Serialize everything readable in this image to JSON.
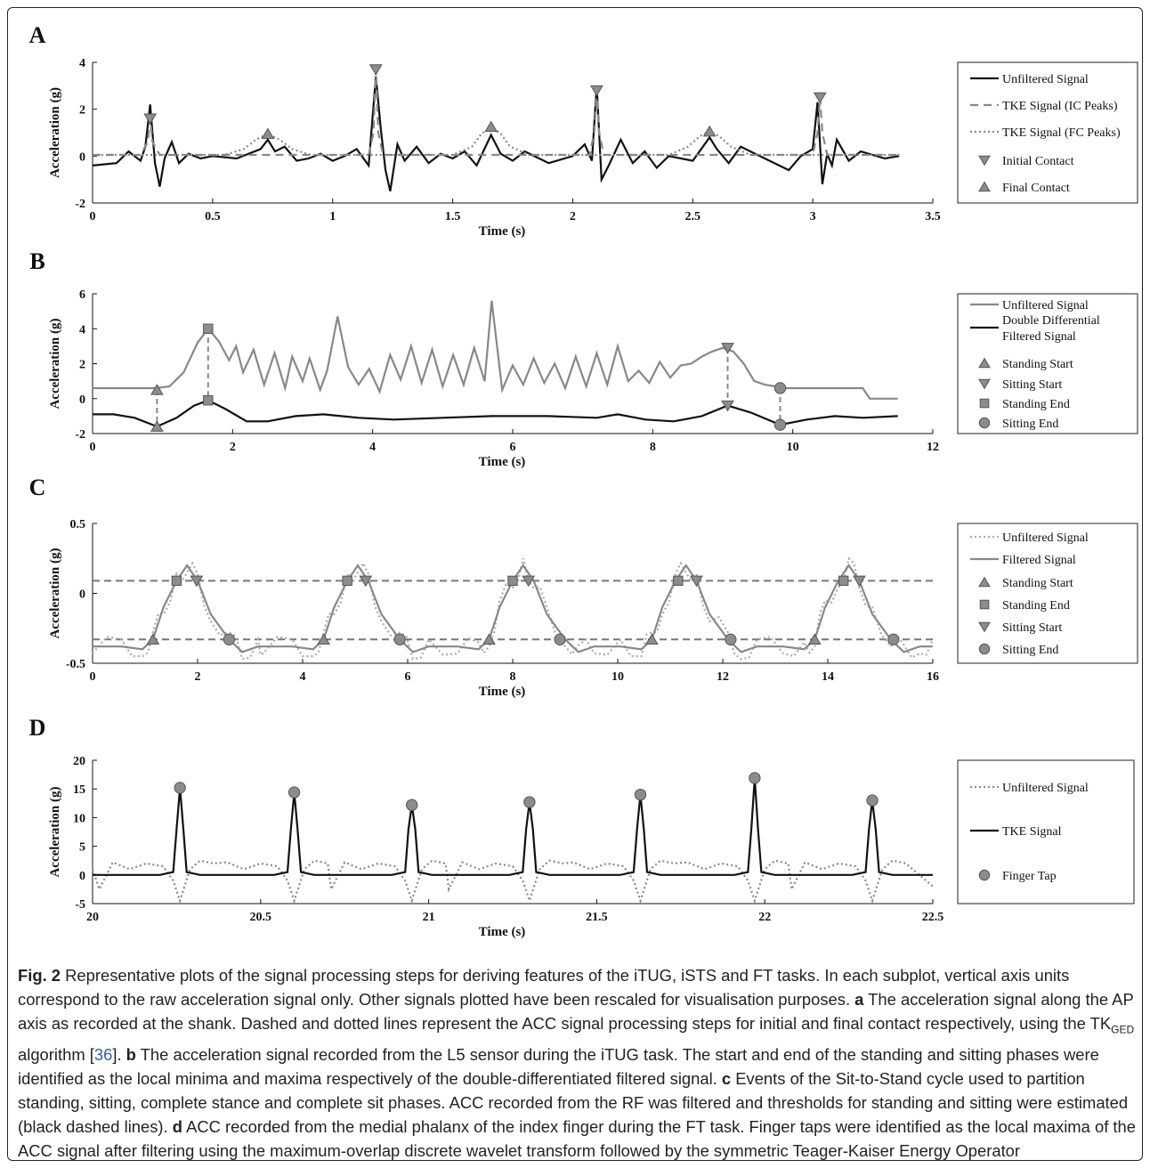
{
  "colors": {
    "black": "#111111",
    "gray": "#888888",
    "marker": "#8c8c8c",
    "light_gray": "#aaaaaa"
  },
  "panels": [
    {
      "letter": "A"
    },
    {
      "letter": "B"
    },
    {
      "letter": "C"
    },
    {
      "letter": "D"
    }
  ],
  "chart_data": [
    {
      "panel": "A",
      "type": "line",
      "xlabel": "Time (s)",
      "ylabel": "Acceleration  (g)",
      "xlim": [
        0,
        3.5
      ],
      "ylim": [
        -2,
        4
      ],
      "xticks": [
        "0",
        "0.5",
        "1",
        "1.5",
        "2",
        "2.5",
        "3",
        "3.5"
      ],
      "yticks": [
        "-2",
        "0",
        "2",
        "4"
      ],
      "legend_position": "right",
      "legend": [
        {
          "label": "Unfiltered Signal",
          "style": "solid-black"
        },
        {
          "label": "TKE Signal (IC Peaks)",
          "style": "dashed-gray"
        },
        {
          "label": "TKE Signal (FC Peaks)",
          "style": "dotted-gray"
        },
        {
          "label": "Initial Contact",
          "style": "triangle-down"
        },
        {
          "label": "Final Contact",
          "style": "triangle-up"
        }
      ],
      "series": [
        {
          "name": "Unfiltered Signal",
          "style": "solid-black",
          "x": [
            0,
            0.1,
            0.15,
            0.2,
            0.22,
            0.24,
            0.26,
            0.28,
            0.3,
            0.33,
            0.36,
            0.4,
            0.45,
            0.5,
            0.6,
            0.7,
            0.73,
            0.76,
            0.8,
            0.85,
            0.9,
            0.95,
            1.0,
            1.05,
            1.1,
            1.15,
            1.18,
            1.2,
            1.22,
            1.24,
            1.27,
            1.3,
            1.35,
            1.4,
            1.45,
            1.5,
            1.55,
            1.6,
            1.66,
            1.7,
            1.75,
            1.8,
            1.9,
            2.0,
            2.05,
            2.08,
            2.1,
            2.12,
            2.15,
            2.2,
            2.25,
            2.3,
            2.35,
            2.4,
            2.5,
            2.57,
            2.6,
            2.65,
            2.7,
            2.8,
            2.9,
            2.95,
            3.0,
            3.02,
            3.04,
            3.06,
            3.08,
            3.1,
            3.15,
            3.2,
            3.3,
            3.36
          ],
          "y": [
            -0.4,
            -0.3,
            0.2,
            -0.2,
            0.4,
            2.2,
            -0.3,
            -1.3,
            -0.1,
            0.6,
            -0.3,
            0.1,
            -0.1,
            0.0,
            -0.1,
            0.3,
            0.7,
            0.2,
            0.4,
            -0.2,
            -0.1,
            0.1,
            -0.2,
            0.0,
            0.3,
            -0.4,
            3.4,
            1.2,
            -0.6,
            -1.5,
            0.5,
            -0.2,
            0.4,
            -0.3,
            0.1,
            -0.1,
            0.2,
            -0.4,
            0.9,
            0.1,
            -0.2,
            0.2,
            -0.3,
            0.0,
            0.5,
            -0.2,
            3.0,
            -1.0,
            -0.4,
            0.7,
            -0.3,
            0.2,
            -0.5,
            0.0,
            -0.2,
            0.8,
            0.3,
            -0.3,
            0.4,
            -0.1,
            -0.6,
            0.0,
            0.3,
            2.3,
            -1.2,
            0.1,
            -0.4,
            0.7,
            -0.2,
            0.2,
            -0.1,
            0.0
          ]
        },
        {
          "name": "TKE Signal (IC Peaks)",
          "style": "dashed-gray",
          "x": [
            0,
            0.2,
            0.23,
            0.24,
            0.25,
            0.28,
            1.15,
            1.17,
            1.18,
            1.19,
            1.21,
            2.07,
            2.09,
            2.1,
            2.11,
            2.13,
            3.0,
            3.02,
            3.03,
            3.04,
            3.06,
            3.36
          ],
          "y": [
            0.05,
            0.05,
            0.6,
            1.6,
            0.6,
            0.05,
            0.05,
            1.0,
            3.7,
            1.0,
            0.05,
            0.05,
            1.0,
            2.8,
            1.0,
            0.05,
            0.05,
            1.0,
            2.5,
            1.0,
            0.05,
            0.05
          ]
        },
        {
          "name": "TKE Signal (FC Peaks)",
          "style": "dotted-gray",
          "x": [
            0,
            0.55,
            0.63,
            0.68,
            0.73,
            0.78,
            0.83,
            0.91,
            1.5,
            1.58,
            1.62,
            1.66,
            1.7,
            1.74,
            1.82,
            2.4,
            2.48,
            2.53,
            2.57,
            2.61,
            2.66,
            2.74,
            3.36
          ],
          "y": [
            0.05,
            0.05,
            0.3,
            0.7,
            0.95,
            0.7,
            0.3,
            0.05,
            0.05,
            0.4,
            0.95,
            1.25,
            0.95,
            0.4,
            0.05,
            0.05,
            0.4,
            0.85,
            1.05,
            0.85,
            0.4,
            0.05,
            0.05
          ]
        }
      ],
      "markers": [
        {
          "name": "Initial Contact",
          "shape": "triangle-down",
          "points": [
            [
              0.24,
              1.6
            ],
            [
              1.18,
              3.7
            ],
            [
              2.1,
              2.8
            ],
            [
              3.03,
              2.5
            ]
          ]
        },
        {
          "name": "Final Contact",
          "shape": "triangle-up",
          "points": [
            [
              0.73,
              0.95
            ],
            [
              1.66,
              1.25
            ],
            [
              2.57,
              1.05
            ]
          ]
        }
      ]
    },
    {
      "panel": "B",
      "type": "line",
      "xlabel": "Time (s)",
      "ylabel": "Acceleration  (g)",
      "xlim": [
        0,
        12
      ],
      "ylim": [
        -2,
        6
      ],
      "xticks": [
        "0",
        "2",
        "4",
        "6",
        "8",
        "10",
        "12"
      ],
      "yticks": [
        "-2",
        "0",
        "2",
        "4",
        "6"
      ],
      "legend_position": "right",
      "legend": [
        {
          "label": "Unfiltered Signal",
          "style": "solid-gray"
        },
        {
          "label": "Double Differential",
          "label2": "Filtered Signal",
          "style": "solid-black"
        },
        {
          "label": "Standing Start",
          "style": "triangle-up"
        },
        {
          "label": "Sitting Start",
          "style": "triangle-down"
        },
        {
          "label": "Standing End",
          "style": "square"
        },
        {
          "label": "Sitting End",
          "style": "circle"
        }
      ],
      "series": [
        {
          "name": "Unfiltered Signal",
          "style": "solid-gray",
          "x": [
            0,
            0.5,
            0.9,
            1.1,
            1.3,
            1.5,
            1.65,
            1.8,
            1.95,
            2.05,
            2.15,
            2.3,
            2.45,
            2.6,
            2.75,
            2.85,
            3.0,
            3.1,
            3.25,
            3.35,
            3.5,
            3.65,
            3.8,
            3.95,
            4.1,
            4.25,
            4.4,
            4.55,
            4.7,
            4.85,
            5.0,
            5.15,
            5.3,
            5.45,
            5.6,
            5.7,
            5.85,
            6.0,
            6.15,
            6.3,
            6.45,
            6.6,
            6.75,
            6.9,
            7.05,
            7.2,
            7.35,
            7.5,
            7.65,
            7.8,
            7.95,
            8.1,
            8.25,
            8.4,
            8.55,
            8.7,
            8.85,
            9.0,
            9.15,
            9.3,
            9.45,
            9.6,
            9.75,
            9.9,
            10.2,
            10.6,
            11.0,
            11.1,
            11.2,
            11.5
          ],
          "y": [
            0.6,
            0.6,
            0.6,
            0.7,
            1.5,
            3.2,
            4.0,
            3.3,
            2.2,
            3.0,
            1.5,
            2.8,
            0.8,
            2.6,
            0.6,
            2.4,
            1.0,
            2.3,
            0.5,
            1.6,
            4.7,
            1.8,
            0.8,
            1.7,
            0.4,
            2.5,
            1.1,
            3.0,
            0.9,
            2.8,
            0.7,
            2.5,
            0.8,
            2.9,
            1.0,
            5.6,
            0.5,
            1.9,
            0.8,
            2.3,
            0.9,
            2.0,
            0.6,
            2.4,
            0.7,
            2.6,
            0.8,
            3.0,
            1.0,
            1.6,
            0.9,
            2.1,
            1.2,
            1.9,
            2.0,
            2.4,
            2.7,
            2.9,
            2.7,
            2.0,
            1.0,
            0.8,
            0.7,
            0.6,
            0.6,
            0.6,
            0.6,
            0.0,
            0.0,
            0.0
          ]
        },
        {
          "name": "Double Differential Filtered Signal",
          "style": "solid-black",
          "x": [
            0,
            0.3,
            0.6,
            0.92,
            1.2,
            1.45,
            1.65,
            1.9,
            2.2,
            2.5,
            2.9,
            3.3,
            3.8,
            4.3,
            5.0,
            5.7,
            6.5,
            7.2,
            7.5,
            7.9,
            8.3,
            8.7,
            9.07,
            9.4,
            9.82,
            10.2,
            10.6,
            11.0,
            11.5
          ],
          "y": [
            -0.9,
            -0.9,
            -1.1,
            -1.6,
            -1.1,
            -0.4,
            -0.1,
            -0.6,
            -1.3,
            -1.3,
            -1.0,
            -0.9,
            -1.1,
            -1.2,
            -1.1,
            -1.0,
            -1.0,
            -1.1,
            -0.9,
            -1.2,
            -1.3,
            -1.0,
            -0.4,
            -0.8,
            -1.5,
            -1.2,
            -1.0,
            -1.1,
            -1.0
          ]
        }
      ],
      "markers": [
        {
          "name": "Standing Start",
          "shape": "triangle-up",
          "points": [
            [
              0.92,
              0.5
            ],
            [
              0.92,
              -1.6
            ]
          ]
        },
        {
          "name": "Sitting Start",
          "shape": "triangle-down",
          "points": [
            [
              9.07,
              2.9
            ],
            [
              9.07,
              -0.4
            ]
          ]
        },
        {
          "name": "Standing End",
          "shape": "square",
          "points": [
            [
              1.65,
              4.0
            ],
            [
              1.65,
              -0.1
            ]
          ]
        },
        {
          "name": "Sitting End",
          "shape": "circle",
          "points": [
            [
              9.82,
              0.6
            ],
            [
              9.82,
              -1.5
            ]
          ]
        }
      ],
      "connectors": [
        [
          0.92,
          0.5,
          0.92,
          -1.6
        ],
        [
          1.65,
          4.0,
          1.65,
          -0.1
        ],
        [
          9.07,
          2.9,
          9.07,
          -0.4
        ],
        [
          9.82,
          0.6,
          9.82,
          -1.5
        ]
      ]
    },
    {
      "panel": "C",
      "type": "line",
      "xlabel": "Time (s)",
      "ylabel": "Acceleration  (g)",
      "xlim": [
        0,
        16
      ],
      "ylim": [
        -0.5,
        0.5
      ],
      "xticks": [
        "0",
        "2",
        "4",
        "6",
        "8",
        "10",
        "12",
        "14",
        "16"
      ],
      "yticks": [
        "-0.5",
        "0",
        "0.5"
      ],
      "legend_position": "right",
      "thresholds": [
        0.09,
        -0.33
      ],
      "legend": [
        {
          "label": "Unfiltered Signal",
          "style": "dotted-light"
        },
        {
          "label": "Filtered Signal",
          "style": "solid-gray"
        },
        {
          "label": "Standing Start",
          "style": "triangle-up"
        },
        {
          "label": "Standing End",
          "style": "square"
        },
        {
          "label": "Sitting Start",
          "style": "triangle-down"
        },
        {
          "label": "Sitting End",
          "style": "circle"
        }
      ],
      "cycle_starts": [
        1.15,
        4.4,
        7.55,
        10.65,
        13.75
      ],
      "markers": [
        {
          "name": "Standing Start",
          "shape": "triangle-up",
          "points": [
            [
              1.15,
              -0.33
            ],
            [
              4.4,
              -0.33
            ],
            [
              7.55,
              -0.33
            ],
            [
              10.65,
              -0.33
            ],
            [
              13.75,
              -0.33
            ]
          ]
        },
        {
          "name": "Standing End",
          "shape": "square",
          "points": [
            [
              1.6,
              0.09
            ],
            [
              4.85,
              0.09
            ],
            [
              8.0,
              0.09
            ],
            [
              11.15,
              0.09
            ],
            [
              14.3,
              0.09
            ]
          ]
        },
        {
          "name": "Sitting Start",
          "shape": "triangle-down",
          "points": [
            [
              1.98,
              0.09
            ],
            [
              5.2,
              0.09
            ],
            [
              8.3,
              0.09
            ],
            [
              11.5,
              0.09
            ],
            [
              14.6,
              0.09
            ]
          ]
        },
        {
          "name": "Sitting End",
          "shape": "circle",
          "points": [
            [
              2.6,
              -0.33
            ],
            [
              5.85,
              -0.33
            ],
            [
              8.9,
              -0.33
            ],
            [
              12.15,
              -0.33
            ],
            [
              15.25,
              -0.33
            ]
          ]
        }
      ]
    },
    {
      "panel": "D",
      "type": "line",
      "xlabel": "Time (s)",
      "ylabel": "Acceleration  (g)",
      "xlim": [
        20,
        22.5
      ],
      "ylim": [
        -5,
        20
      ],
      "xticks": [
        "20",
        "20.5",
        "21",
        "21.5",
        "22",
        "22.5"
      ],
      "yticks": [
        "-5",
        "0",
        "5",
        "10",
        "15",
        "20"
      ],
      "legend_position": "right",
      "legend": [
        {
          "label": "Unfiltered Signal",
          "style": "dotted-gray"
        },
        {
          "label": "TKE Signal",
          "style": "solid-black"
        },
        {
          "label": "Finger Tap",
          "style": "circle"
        }
      ],
      "taps": [
        [
          20.26,
          15.2
        ],
        [
          20.6,
          14.4
        ],
        [
          20.95,
          12.2
        ],
        [
          21.3,
          12.7
        ],
        [
          21.63,
          14.0
        ],
        [
          21.97,
          16.9
        ],
        [
          22.32,
          13.0
        ]
      ]
    }
  ],
  "caption": {
    "fig_label": "Fig. 2",
    "text1": " Representative plots of the signal processing steps for deriving features of the iTUG, iSTS and FT tasks. In each subplot, vertical axis units correspond to the raw acceleration signal only. Other signals plotted have been rescaled for visualisation purposes. ",
    "a": "a",
    "text_a": " The acceleration signal along the AP axis as recorded at the shank. Dashed and dotted lines represent the ACC signal processing steps for initial and final contact respectively, using the TK",
    "sub": "GED",
    "text_a2": " algorithm [",
    "ref": "36",
    "text_a3": "]. ",
    "b": "b",
    "text_b": " The acceleration signal recorded from the L5 sensor during the iTUG task. The start and end of the standing and sitting phases were identified as the local minima and maxima respectively of the double-differentiated filtered signal. ",
    "c": "c",
    "text_c": " Events of the Sit-to-Stand cycle used to partition standing, sitting, complete stance and complete sit phases. ACC recorded from the RF was filtered and thresholds for standing and sitting were estimated (black dashed lines). ",
    "d": "d",
    "text_d": " ACC recorded from the medial phalanx of the index finger during the FT task. Finger taps were identified as the local maxima of the ACC signal after filtering using the maximum-overlap discrete wavelet transform followed by the symmetric Teager-Kaiser Energy Operator"
  }
}
